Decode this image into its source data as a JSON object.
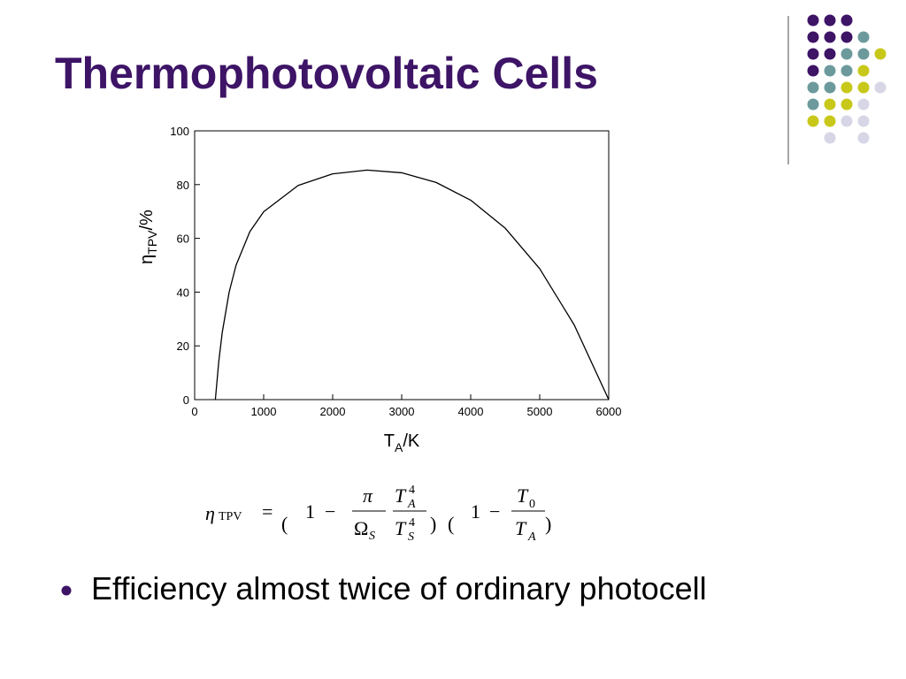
{
  "slide_title": "Thermophotovoltaic Cells",
  "chart_data": {
    "type": "line",
    "x": [
      300,
      350,
      400,
      500,
      600,
      800,
      1000,
      1500,
      2000,
      2500,
      3000,
      3500,
      4000,
      4500,
      5000,
      5500,
      6000
    ],
    "series": [
      {
        "color": "#000000",
        "values": [
          0,
          14.3,
          25,
          40,
          50,
          62.5,
          69.9,
          79.7,
          84,
          85.4,
          84.4,
          80.8,
          74.2,
          63.8,
          48.7,
          27.8,
          0
        ]
      }
    ],
    "xlim": [
      0,
      6000
    ],
    "xticks": [
      0,
      1000,
      2000,
      3000,
      4000,
      5000,
      6000
    ],
    "ylim": [
      0,
      100
    ],
    "yticks": [
      0,
      20,
      40,
      60,
      80,
      100
    ],
    "ylabel": {
      "symbol": "η",
      "sub": "TPV",
      "unit": "/%"
    },
    "xlabel": {
      "symbol": "T",
      "sub": "A",
      "unit": "/K"
    }
  },
  "formula": {
    "eta": "η",
    "eta_sub": "TPV",
    "equals": "=",
    "lparen": "(",
    "rparen": ")",
    "one": "1",
    "minus": "−",
    "pi": "π",
    "omega": "Ω",
    "sub_s": "S",
    "t": "T",
    "sub_a": "A",
    "exp": "4",
    "sub_0": "0"
  },
  "bullets": [
    "Efficiency almost twice of ordinary photocell"
  ]
}
